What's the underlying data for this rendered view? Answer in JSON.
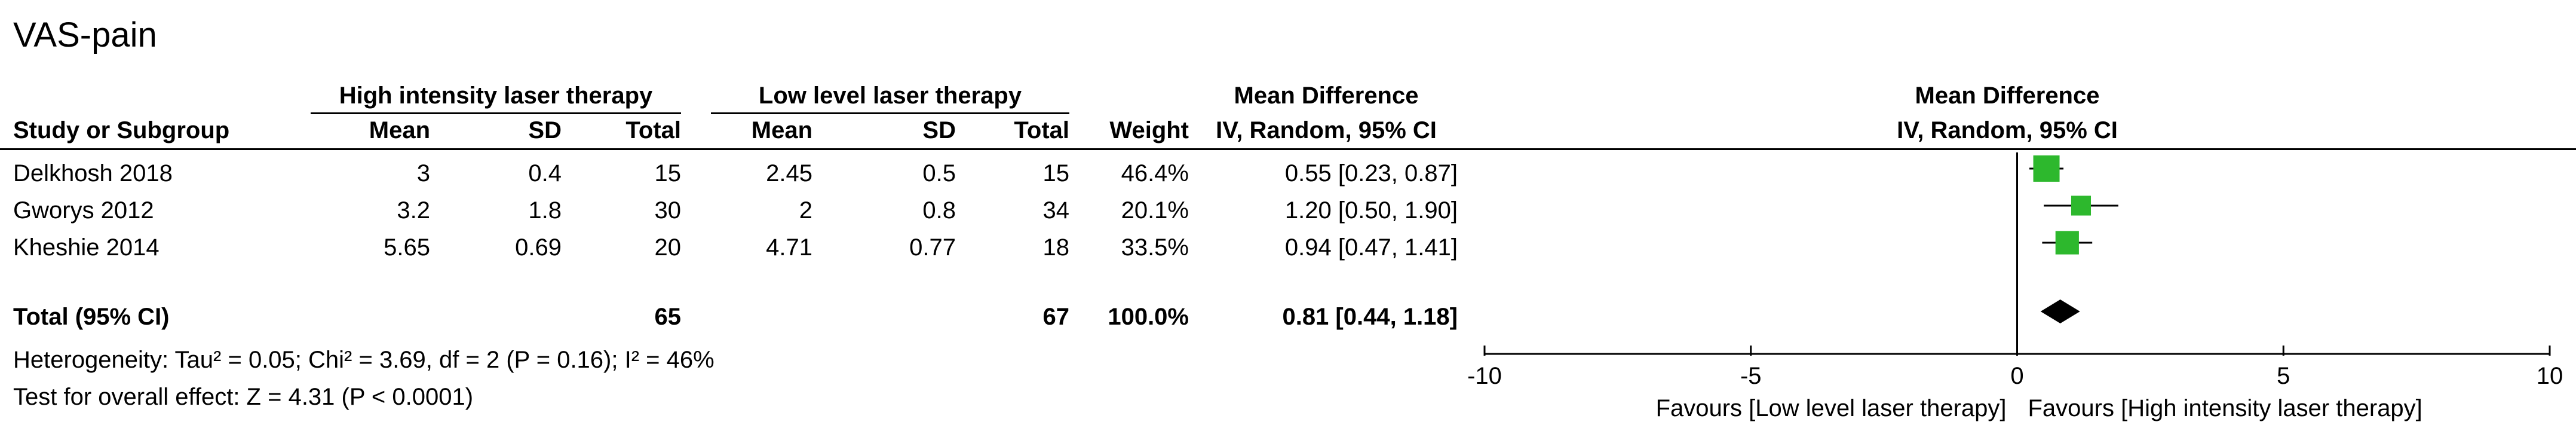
{
  "title": "VAS-pain",
  "headers": {
    "group1": "High intensity laser therapy",
    "group2": "Low level laser therapy",
    "effect_top": "Mean Difference",
    "effect_sub": "IV, Random, 95% CI",
    "plot_top": "Mean Difference",
    "plot_sub": "IV, Random, 95% CI",
    "study": "Study or Subgroup",
    "mean1": "Mean",
    "sd1": "SD",
    "total1": "Total",
    "mean2": "Mean",
    "sd2": "SD",
    "total2": "Total",
    "weight": "Weight"
  },
  "rows": [
    {
      "study": "Delkhosh 2018",
      "m1": "3",
      "sd1": "0.4",
      "n1": "15",
      "m2": "2.45",
      "sd2": "0.5",
      "n2": "15",
      "weight": "46.4%",
      "ci": "0.55 [0.23, 0.87]"
    },
    {
      "study": "Gworys 2012",
      "m1": "3.2",
      "sd1": "1.8",
      "n1": "30",
      "m2": "2",
      "sd2": "0.8",
      "n2": "34",
      "weight": "20.1%",
      "ci": "1.20 [0.50, 1.90]"
    },
    {
      "study": "Kheshie 2014",
      "m1": "5.65",
      "sd1": "0.69",
      "n1": "20",
      "m2": "4.71",
      "sd2": "0.77",
      "n2": "18",
      "weight": "33.5%",
      "ci": "0.94 [0.47, 1.41]"
    }
  ],
  "total": {
    "label": "Total (95% CI)",
    "n1": "65",
    "n2": "67",
    "weight": "100.0%",
    "ci": "0.81 [0.44, 1.18]"
  },
  "heterogeneity": "Heterogeneity: Tau² = 0.05; Chi² = 3.69, df = 2 (P = 0.16); I² = 46%",
  "overall": "Test for overall effect: Z = 4.31 (P < 0.0001)",
  "chart_data": {
    "type": "scatter",
    "xlim": [
      -10,
      10
    ],
    "ticks": [
      "-10",
      "-5",
      "0",
      "5",
      "10"
    ],
    "tick_values": [
      -10,
      -5,
      0,
      5,
      10
    ],
    "favours_left": "Favours [Low level laser therapy]",
    "favours_right": "Favours [High intensity laser therapy]",
    "studies": [
      {
        "name": "Delkhosh 2018",
        "md": 0.55,
        "lo": 0.23,
        "hi": 0.87,
        "weight": 46.4
      },
      {
        "name": "Gworys 2012",
        "md": 1.2,
        "lo": 0.5,
        "hi": 1.9,
        "weight": 20.1
      },
      {
        "name": "Kheshie 2014",
        "md": 0.94,
        "lo": 0.47,
        "hi": 1.41,
        "weight": 33.5
      }
    ],
    "pooled": {
      "md": 0.81,
      "lo": 0.44,
      "hi": 1.18
    },
    "marker_color": "#2db82d"
  }
}
